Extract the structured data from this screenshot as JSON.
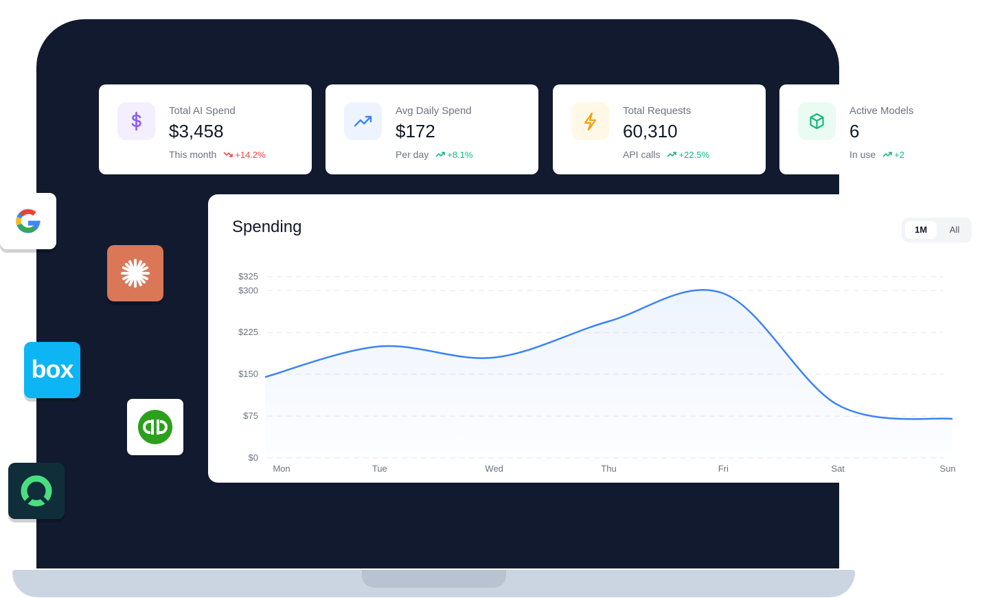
{
  "cards": [
    {
      "label": "Total AI Spend",
      "value": "$3,458",
      "sub": "This month",
      "change": "+14.2%"
    },
    {
      "label": "Avg Daily Spend",
      "value": "$172",
      "sub": "Per day",
      "change": "+8.1%"
    },
    {
      "label": "Total Requests",
      "value": "60,310",
      "sub": "API calls",
      "change": "+22.5%"
    },
    {
      "label": "Active Models",
      "value": "6",
      "sub": "In use",
      "change": "+2"
    }
  ],
  "integrations": {
    "box": "box"
  },
  "toggle": [
    "1M",
    "All"
  ],
  "chart_data": {
    "type": "line",
    "title": "Spending",
    "categories": [
      "Mon",
      "Tue",
      "Wed",
      "Thu",
      "Fri",
      "Sat",
      "Sun"
    ],
    "series": [
      {
        "name": "Spending",
        "color": "#3b82f6",
        "values": [
          145,
          200,
          180,
          245,
          295,
          95,
          70
        ]
      }
    ],
    "ylim": [
      0,
      325
    ],
    "yticks": [
      {
        "value": 0,
        "label": "$0"
      },
      {
        "value": 75,
        "label": "$75"
      },
      {
        "value": 150,
        "label": "$150"
      },
      {
        "value": 225,
        "label": "$225"
      },
      {
        "value": 300,
        "label": "$300"
      },
      {
        "value": 325,
        "label": "$325"
      }
    ],
    "grid": true
  }
}
